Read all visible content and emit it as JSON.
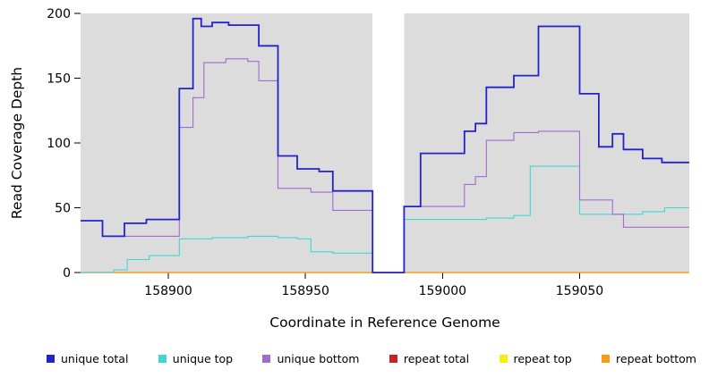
{
  "chart_data": {
    "type": "line",
    "title": "",
    "xlabel": "Coordinate in Reference Genome",
    "ylabel": "Read Coverage Depth",
    "xlim": [
      158868,
      159090
    ],
    "ylim": [
      0,
      200
    ],
    "x_ticks": [
      158900,
      158950,
      159000,
      159050
    ],
    "y_ticks": [
      0,
      50,
      100,
      150,
      200
    ],
    "panel_bg": "#dcdcdc",
    "grid": false,
    "legend_position": "bottom",
    "gap_region": {
      "start": 158974.5,
      "end": 158986
    },
    "series": [
      {
        "name": "repeat total",
        "color": "#cc2222",
        "lw": 1,
        "points": [
          [
            158868,
            0
          ]
        ]
      },
      {
        "name": "repeat top",
        "color": "#f2f20c",
        "lw": 1,
        "points": [
          [
            158868,
            0
          ]
        ]
      },
      {
        "name": "repeat bottom",
        "color": "#ff9914",
        "lw": 1.5,
        "points": [
          [
            158868,
            0
          ]
        ]
      },
      {
        "name": "unique top",
        "color": "#3fd6d6",
        "lw": 1.1,
        "points": [
          [
            158868,
            0
          ],
          [
            158880,
            2
          ],
          [
            158885,
            10
          ],
          [
            158893,
            13
          ],
          [
            158904,
            26
          ],
          [
            158916,
            27
          ],
          [
            158929,
            28
          ],
          [
            158940,
            27
          ],
          [
            158947,
            26
          ],
          [
            158952,
            16
          ],
          [
            158960,
            15
          ],
          [
            158974.5,
            0
          ],
          [
            158986,
            41
          ],
          [
            159016,
            42
          ],
          [
            159026,
            44
          ],
          [
            159032,
            82
          ],
          [
            159050,
            45
          ],
          [
            159073,
            47
          ],
          [
            159081,
            50
          ]
        ]
      },
      {
        "name": "unique bottom",
        "color": "#a06ad0",
        "lw": 1.1,
        "points": [
          [
            158868,
            40
          ],
          [
            158876,
            28
          ],
          [
            158884,
            28
          ],
          [
            158892,
            28
          ],
          [
            158904,
            112
          ],
          [
            158909,
            135
          ],
          [
            158913,
            162
          ],
          [
            158921,
            165
          ],
          [
            158929,
            163
          ],
          [
            158933,
            148
          ],
          [
            158940,
            65
          ],
          [
            158952,
            62
          ],
          [
            158960,
            48
          ],
          [
            158974.5,
            0
          ],
          [
            158986,
            51
          ],
          [
            159008,
            68
          ],
          [
            159012,
            74
          ],
          [
            159016,
            102
          ],
          [
            159026,
            108
          ],
          [
            159035,
            109
          ],
          [
            159050,
            56
          ],
          [
            159062,
            45
          ],
          [
            159066,
            35
          ]
        ]
      },
      {
        "name": "unique total",
        "color": "#2323cd",
        "lw": 1.8,
        "points": [
          [
            158868,
            40
          ],
          [
            158876,
            28
          ],
          [
            158884,
            38
          ],
          [
            158892,
            41
          ],
          [
            158904,
            142
          ],
          [
            158909,
            196
          ],
          [
            158912,
            190
          ],
          [
            158916,
            193
          ],
          [
            158922,
            191
          ],
          [
            158933,
            175
          ],
          [
            158940,
            90
          ],
          [
            158947,
            80
          ],
          [
            158955,
            78
          ],
          [
            158960,
            63
          ],
          [
            158974.5,
            0
          ],
          [
            158986,
            51
          ],
          [
            158992,
            92
          ],
          [
            159008,
            109
          ],
          [
            159012,
            115
          ],
          [
            159016,
            143
          ],
          [
            159026,
            152
          ],
          [
            159035,
            190
          ],
          [
            159050,
            138
          ],
          [
            159057,
            97
          ],
          [
            159062,
            107
          ],
          [
            159066,
            95
          ],
          [
            159073,
            88
          ],
          [
            159080,
            85
          ]
        ]
      }
    ]
  },
  "legend": {
    "items": [
      {
        "label": "unique total",
        "color": "#2323cd"
      },
      {
        "label": "unique top",
        "color": "#3fd6d6"
      },
      {
        "label": "unique bottom",
        "color": "#a06ad0"
      },
      {
        "label": "repeat total",
        "color": "#cc2222"
      },
      {
        "label": "repeat top",
        "color": "#f2f20c"
      },
      {
        "label": "repeat bottom",
        "color": "#ff9914"
      }
    ]
  }
}
